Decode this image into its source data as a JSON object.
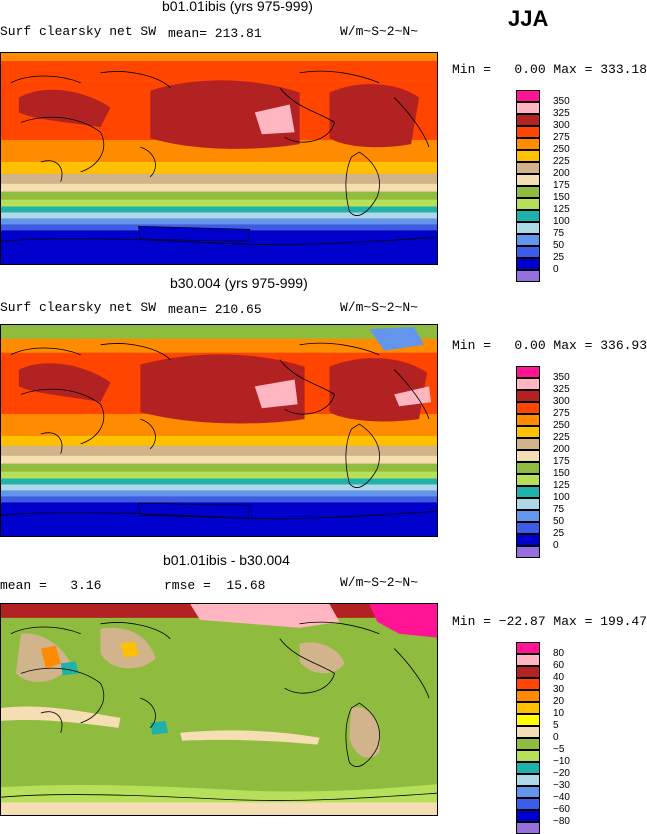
{
  "season": "JJA",
  "colors": {
    "c350": "#ff1493",
    "c325": "#ffb6c1",
    "c300": "#b22222",
    "c275": "#ff4500",
    "c250": "#ff8c00",
    "c225": "#ffc000",
    "c200": "#d2b48c",
    "c175": "#f5deb3",
    "c150": "#8fbc3f",
    "c125": "#b7e05a",
    "c100": "#20b2aa",
    "c75": "#add8e6",
    "c50": "#6495ed",
    "c25": "#3c5de6",
    "c0": "#0000cd",
    "cbelow": "#9370db"
  },
  "chart_data": [
    {
      "type": "heatmap",
      "title": "b01.01ibis (yrs 975-999)",
      "variable": "Surf clearsky net SW",
      "stat": "mean= 213.81",
      "units": "W/m~S~2~N~",
      "range_text": "Min =   0.00 Max = 333.18",
      "min": 0.0,
      "max": 333.18,
      "mean": 213.81,
      "levels": [
        "350",
        "325",
        "300",
        "275",
        "250",
        "225",
        "200",
        "175",
        "150",
        "125",
        "100",
        "75",
        "50",
        "25",
        "0"
      ],
      "level_colors": [
        "#ff1493",
        "#ffb6c1",
        "#b22222",
        "#ff4500",
        "#ff8c00",
        "#ffc000",
        "#d2b48c",
        "#f5deb3",
        "#8fbc3f",
        "#b7e05a",
        "#20b2aa",
        "#add8e6",
        "#6495ed",
        "#3c5de6",
        "#0000cd",
        "#9370db"
      ]
    },
    {
      "type": "heatmap",
      "title": "b30.004 (yrs 975-999)",
      "variable": "Surf clearsky net SW",
      "stat": "mean= 210.65",
      "units": "W/m~S~2~N~",
      "range_text": "Min =   0.00 Max = 336.93",
      "min": 0.0,
      "max": 336.93,
      "mean": 210.65,
      "levels": [
        "350",
        "325",
        "300",
        "275",
        "250",
        "225",
        "200",
        "175",
        "150",
        "125",
        "100",
        "75",
        "50",
        "25",
        "0"
      ],
      "level_colors": [
        "#ff1493",
        "#ffb6c1",
        "#b22222",
        "#ff4500",
        "#ff8c00",
        "#ffc000",
        "#d2b48c",
        "#f5deb3",
        "#8fbc3f",
        "#b7e05a",
        "#20b2aa",
        "#add8e6",
        "#6495ed",
        "#3c5de6",
        "#0000cd",
        "#9370db"
      ]
    },
    {
      "type": "heatmap",
      "title": "b01.01ibis - b30.004",
      "stat_mean": "mean =   3.16",
      "stat_rmse": "rmse =  15.68",
      "units": "W/m~S~2~N~",
      "range_text": "Min = −22.87 Max = 199.47",
      "min": -22.87,
      "max": 199.47,
      "mean": 3.16,
      "rmse": 15.68,
      "levels": [
        "80",
        "60",
        "40",
        "30",
        "20",
        "10",
        "5",
        "0",
        "−5",
        "−10",
        "−20",
        "−30",
        "−40",
        "−60",
        "−80"
      ],
      "level_colors": [
        "#ff1493",
        "#ffb6c1",
        "#b22222",
        "#ff4500",
        "#ff8c00",
        "#ffc000",
        "#ffff00",
        "#f5deb3",
        "#8fbc3f",
        "#b7e05a",
        "#20b2aa",
        "#add8e6",
        "#6495ed",
        "#3c5de6",
        "#0000cd",
        "#9370db"
      ]
    }
  ]
}
